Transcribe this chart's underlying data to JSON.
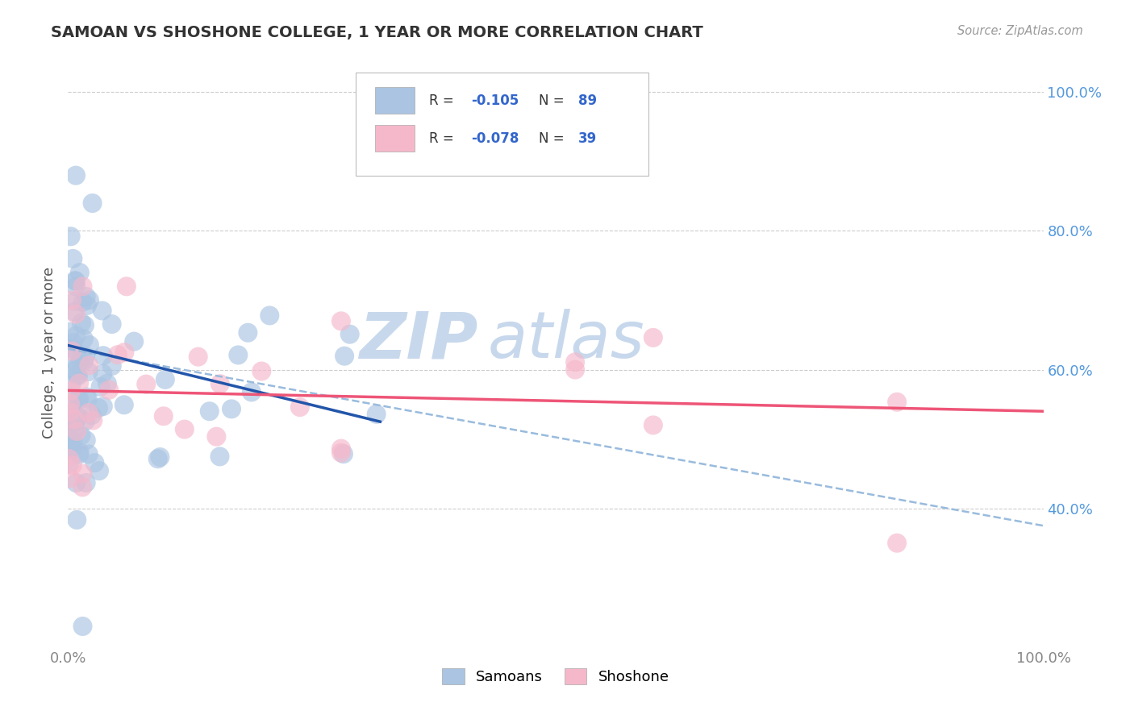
{
  "title": "SAMOAN VS SHOSHONE COLLEGE, 1 YEAR OR MORE CORRELATION CHART",
  "source_text": "Source: ZipAtlas.com",
  "ylabel": "College, 1 year or more",
  "xlim": [
    0.0,
    1.0
  ],
  "ylim": [
    0.2,
    1.05
  ],
  "ytick_positions": [
    0.4,
    0.6,
    0.8,
    1.0
  ],
  "ytick_labels": [
    "40.0%",
    "60.0%",
    "80.0%",
    "100.0%"
  ],
  "xtick_positions": [
    0.0,
    1.0
  ],
  "xtick_labels": [
    "0.0%",
    "100.0%"
  ],
  "legend_r_samoan": "-0.105",
  "legend_n_samoan": "89",
  "legend_r_shoshone": "-0.078",
  "legend_n_shoshone": "39",
  "samoan_color": "#aac4e2",
  "shoshone_color": "#f5b8cb",
  "samoan_line_color": "#2255aa",
  "shoshone_line_color": "#ee5577",
  "dashed_line_color": "#99bbdd",
  "watermark_zip": "ZIP",
  "watermark_atlas": "atlas",
  "watermark_color": "#c8d8ec",
  "background_color": "#ffffff",
  "grid_color": "#cccccc",
  "title_color": "#333333",
  "source_color": "#999999",
  "ylabel_color": "#555555",
  "tick_color_x": "#888888",
  "tick_color_y": "#5599dd",
  "samoan_line_x0": 0.0,
  "samoan_line_x1": 0.32,
  "samoan_line_y0": 0.635,
  "samoan_line_y1": 0.525,
  "shoshone_line_x0": 0.0,
  "shoshone_line_x1": 1.0,
  "shoshone_line_y0": 0.57,
  "shoshone_line_y1": 0.54,
  "dashed_line_x0": 0.0,
  "dashed_line_x1": 1.0,
  "dashed_line_y0": 0.63,
  "dashed_line_y1": 0.375
}
